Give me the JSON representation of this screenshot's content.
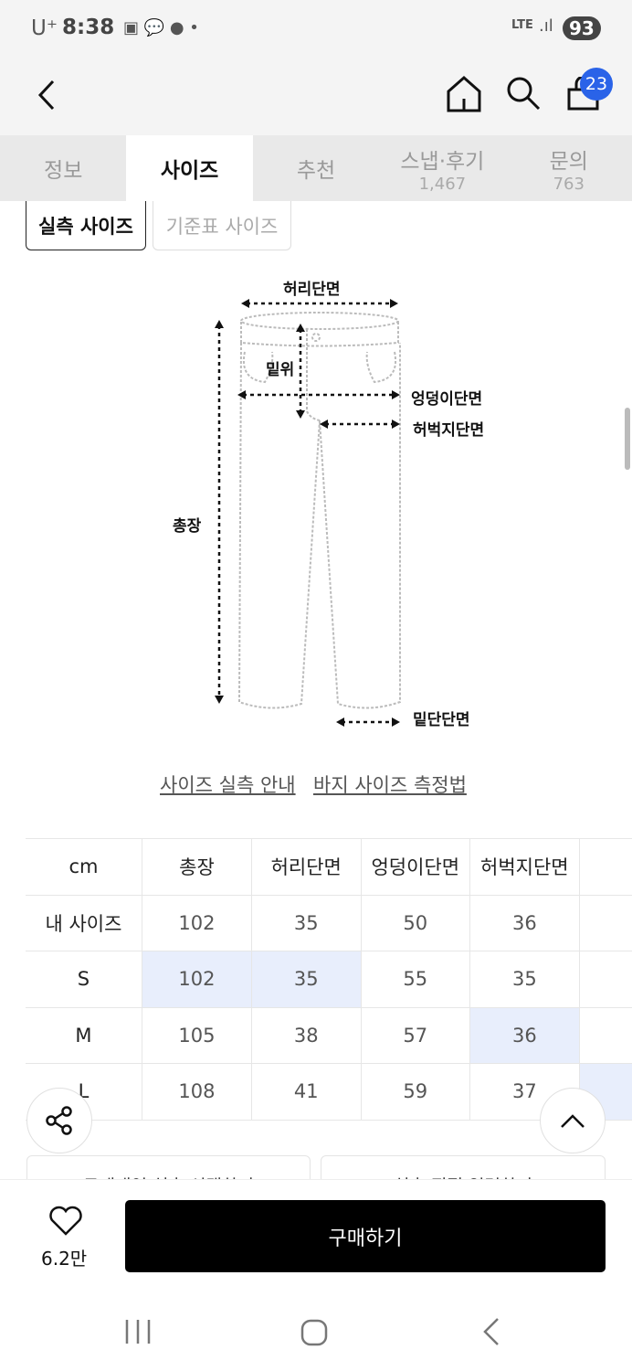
{
  "status": {
    "carrier": "U⁺",
    "time": "8:38",
    "network": "LTE",
    "battery": "93"
  },
  "header": {
    "cart_count": "23"
  },
  "tabs": [
    {
      "label": "정보"
    },
    {
      "label": "사이즈",
      "active": true
    },
    {
      "label": "추천"
    },
    {
      "label": "스냅·후기",
      "count": "1,467"
    },
    {
      "label": "문의",
      "count": "763"
    }
  ],
  "size_toggle": {
    "actual": "실측 사이즈",
    "standard": "기준표 사이즈"
  },
  "diagram": {
    "waist": "허리단면",
    "rise": "밑위",
    "hip": "엉덩이단면",
    "thigh": "허벅지단면",
    "length": "총장",
    "hem": "밑단단면"
  },
  "links": {
    "guide": "사이즈 실측 안내",
    "howto": "바지 사이즈 측정법"
  },
  "table": {
    "headers": [
      "cm",
      "총장",
      "허리단면",
      "엉덩이단면",
      "허벅지단면"
    ],
    "rows": [
      [
        "내 사이즈",
        "102",
        "35",
        "50",
        "36"
      ],
      [
        "S",
        "102",
        "35",
        "55",
        "35"
      ],
      [
        "M",
        "105",
        "38",
        "57",
        "36"
      ],
      [
        "L",
        "108",
        "41",
        "59",
        "37"
      ]
    ]
  },
  "actions": {
    "select_from_orders": "구매내역 실측 선택하기",
    "enter_manually": "실측 직접 입력하기"
  },
  "bottom": {
    "likes": "6.2만",
    "buy": "구매하기"
  },
  "colors": {
    "accent": "#2a63e8",
    "highlight": "#e8eefc"
  }
}
